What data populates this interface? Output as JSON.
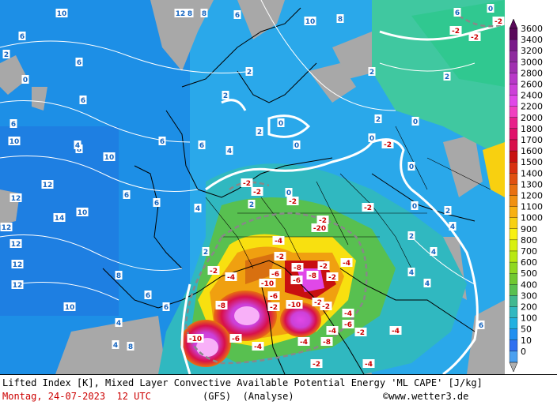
{
  "footer": {
    "title": "Lifted Index [K], Mixed Layer Convective Available Potential Energy 'ML CAPE' [J/kg]",
    "date": "Montag, 24-07-2023  12 UTC",
    "model": "(GFS)  (Analyse)",
    "copyright": "www.wetter3.de",
    "copyright_symbol": "©"
  },
  "legend": {
    "unit": "J/kg",
    "levels": [
      "3600",
      "3400",
      "3200",
      "3000",
      "2800",
      "2600",
      "2400",
      "2200",
      "2000",
      "1800",
      "1700",
      "1600",
      "1500",
      "1400",
      "1300",
      "1200",
      "1100",
      "1000",
      "900",
      "800",
      "700",
      "600",
      "500",
      "400",
      "300",
      "200",
      "100",
      "50",
      "10",
      "0"
    ],
    "colors": [
      "#5a0a5a",
      "#7a1a8a",
      "#8e2a9e",
      "#a030b0",
      "#b838c8",
      "#cc40d8",
      "#e048e8",
      "#f040c0",
      "#e8208a",
      "#e0106a",
      "#d8104a",
      "#c81010",
      "#d83010",
      "#e05010",
      "#e87010",
      "#f09010",
      "#f8b010",
      "#f8d010",
      "#f8f010",
      "#d8f010",
      "#b8e810",
      "#90d820",
      "#70c830",
      "#58c050",
      "#40b890",
      "#30b8c0",
      "#20b0e0",
      "#2090f0",
      "#3070f0",
      "#4aa0f0"
    ],
    "arrow_top": "up-arrow-icon",
    "arrow_bottom": "down-arrow-icon"
  },
  "map": {
    "lifted_index_labels": [
      {
        "t": "10",
        "neg": false
      },
      {
        "t": "12",
        "neg": false
      },
      {
        "t": "8",
        "neg": false
      },
      {
        "t": "6",
        "neg": false
      },
      {
        "t": "4",
        "neg": false
      },
      {
        "t": "2",
        "neg": false
      },
      {
        "t": "0",
        "neg": false
      },
      {
        "t": "14",
        "neg": false
      },
      {
        "t": "-2",
        "neg": true
      },
      {
        "t": "-4",
        "neg": true
      },
      {
        "t": "-6",
        "neg": true
      },
      {
        "t": "-8",
        "neg": true
      },
      {
        "t": "-10",
        "neg": true
      },
      {
        "t": "-20",
        "neg": true
      }
    ]
  }
}
